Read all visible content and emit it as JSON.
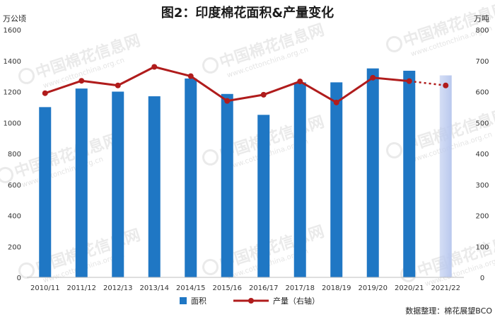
{
  "chart_data": {
    "type": "bar",
    "title": "图2：印度棉花面积&产量变化",
    "left_unit": "万公顷",
    "right_unit": "万吨",
    "categories": [
      "2010/11",
      "2011/12",
      "2012/13",
      "2013/14",
      "2014/15",
      "2015/16",
      "2016/17",
      "2017/18",
      "2018/19",
      "2019/20",
      "2020/21",
      "2021/22"
    ],
    "series": [
      {
        "name": "面积",
        "axis": "left",
        "kind": "bar",
        "values": [
          1100,
          1220,
          1200,
          1170,
          1285,
          1185,
          1050,
          1260,
          1260,
          1350,
          1335,
          1305
        ],
        "color": "#1f77c4",
        "last_point_color": "#b9c8ee"
      },
      {
        "name": "产量（右轴）",
        "axis": "right",
        "kind": "line",
        "values": [
          595,
          635,
          620,
          680,
          650,
          570,
          590,
          633,
          565,
          645,
          634,
          620
        ],
        "color": "#b01c1c",
        "projected_from_index": 10
      }
    ],
    "y_left": {
      "min": 0,
      "max": 1600,
      "ticks": [
        0,
        200,
        400,
        600,
        800,
        1000,
        1200,
        1400,
        1600
      ]
    },
    "y_right": {
      "min": 0,
      "max": 800,
      "ticks": [
        0,
        100,
        200,
        300,
        400,
        500,
        600,
        700,
        800
      ]
    },
    "grid": false,
    "legend_position": "bottom-center",
    "source": "数据整理：棉花展望BCO",
    "watermark": {
      "text": "中国棉花信息网",
      "url": "www.cottonchina.org.cn"
    }
  }
}
